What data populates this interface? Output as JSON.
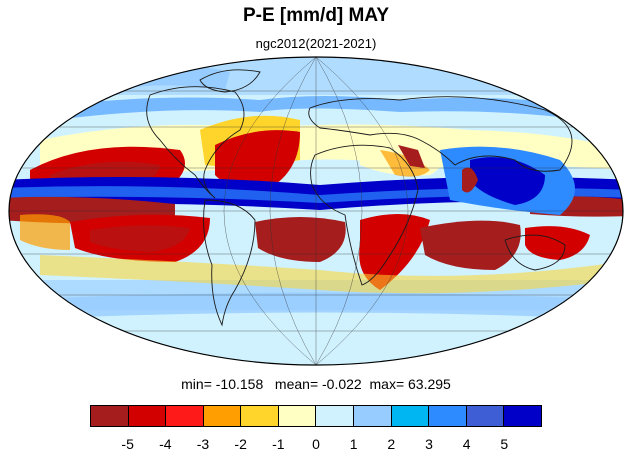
{
  "title": "P-E [mm/d] MAY",
  "subtitle": "ngc2012(2021-2021)",
  "stats": {
    "min_label": "min=",
    "min": "-10.158",
    "mean_label": "mean=",
    "mean": "-0.022",
    "max_label": "max=",
    "max": "63.295"
  },
  "colorbar": {
    "colors": [
      "#a51d1d",
      "#d30000",
      "#ff1a1a",
      "#ff9e00",
      "#ffd52b",
      "#ffffc4",
      "#d0f2ff",
      "#96ccff",
      "#00b6f2",
      "#2e8aff",
      "#3e5ed6",
      "#0000c8"
    ],
    "tick_labels": [
      "-5",
      "-4",
      "-3",
      "-2",
      "-1",
      "0",
      "1",
      "2",
      "3",
      "4",
      "5"
    ]
  }
}
